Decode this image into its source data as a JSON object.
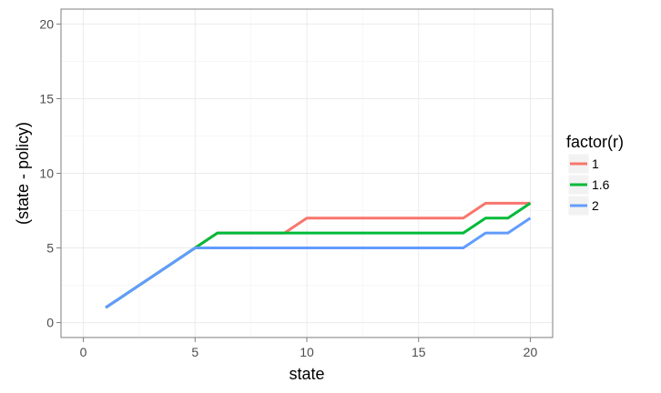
{
  "chart_data": {
    "type": "line",
    "title": "",
    "xlabel": "state",
    "ylabel": "(state - policy)",
    "xlim": [
      -1,
      21
    ],
    "ylim": [
      -1,
      21
    ],
    "x_ticks": [
      0,
      5,
      10,
      15,
      20
    ],
    "y_ticks": [
      0,
      5,
      10,
      15,
      20
    ],
    "grid": true,
    "legend": {
      "title": "factor(r)",
      "placement": "right"
    },
    "x": [
      1,
      2,
      3,
      4,
      5,
      6,
      7,
      8,
      9,
      10,
      11,
      12,
      13,
      14,
      15,
      16,
      17,
      18,
      19,
      20
    ],
    "series": [
      {
        "name": "1",
        "color": "#F8766D",
        "values": [
          1,
          2,
          3,
          4,
          5,
          6,
          6,
          6,
          6,
          7,
          7,
          7,
          7,
          7,
          7,
          7,
          7,
          8,
          8,
          8
        ]
      },
      {
        "name": "1.6",
        "color": "#00BA38",
        "values": [
          1,
          2,
          3,
          4,
          5,
          6,
          6,
          6,
          6,
          6,
          6,
          6,
          6,
          6,
          6,
          6,
          6,
          7,
          7,
          8
        ]
      },
      {
        "name": "2",
        "color": "#619CFF",
        "values": [
          1,
          2,
          3,
          4,
          5,
          5,
          5,
          5,
          5,
          5,
          5,
          5,
          5,
          5,
          5,
          5,
          5,
          6,
          6,
          7
        ]
      }
    ]
  }
}
